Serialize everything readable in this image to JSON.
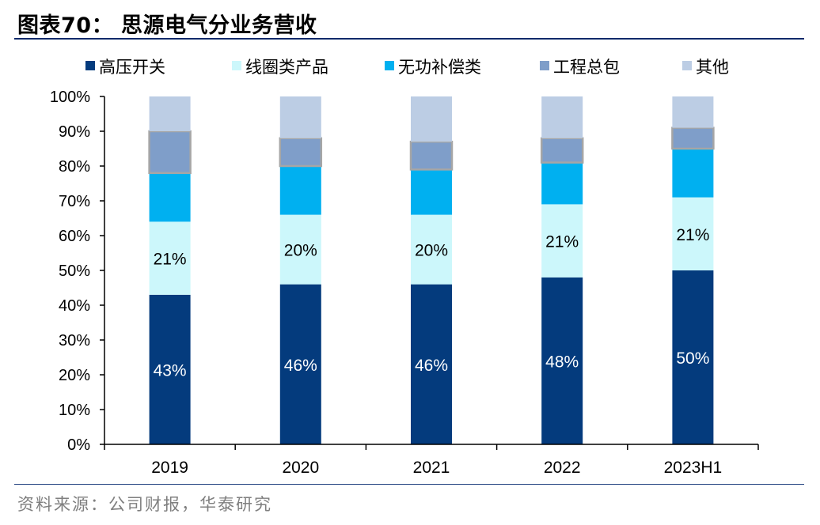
{
  "figure_title": "图表70：  思源电气分业务营收",
  "source_note": "资料来源：公司财报，华泰研究",
  "chart_data": {
    "type": "bar",
    "stacked": true,
    "percent": true,
    "title": "图表70：  思源电气分业务营收",
    "xlabel": "",
    "ylabel": "",
    "ylim": [
      0,
      100
    ],
    "yticks": [
      "0%",
      "10%",
      "20%",
      "30%",
      "40%",
      "50%",
      "60%",
      "70%",
      "80%",
      "90%",
      "100%"
    ],
    "categories": [
      "2019",
      "2020",
      "2021",
      "2022",
      "2023H1"
    ],
    "legend_position": "top",
    "series": [
      {
        "name": "高压开关",
        "color": "#043b7d",
        "values": [
          43,
          46,
          46,
          48,
          50
        ],
        "labels": [
          "43%",
          "46%",
          "46%",
          "48%",
          "50%"
        ],
        "label_color": "#ffffff"
      },
      {
        "name": "线圈类产品",
        "color": "#ccf7fb",
        "values": [
          21,
          20,
          20,
          21,
          21
        ],
        "labels": [
          "21%",
          "20%",
          "20%",
          "21%",
          "21%"
        ],
        "label_color": "#000000"
      },
      {
        "name": "无功补偿类",
        "color": "#00b0f0",
        "values": [
          14,
          14,
          13,
          12,
          14
        ],
        "labels": [],
        "label_color": "#000000"
      },
      {
        "name": "工程总包",
        "color": "#7f9ec9",
        "values": [
          12,
          8,
          8,
          7,
          6
        ],
        "labels": [],
        "label_color": "#000000"
      },
      {
        "name": "其他",
        "color": "#bccde4",
        "values": [
          10,
          12,
          13,
          12,
          9
        ],
        "labels": [],
        "label_color": "#000000"
      }
    ]
  }
}
